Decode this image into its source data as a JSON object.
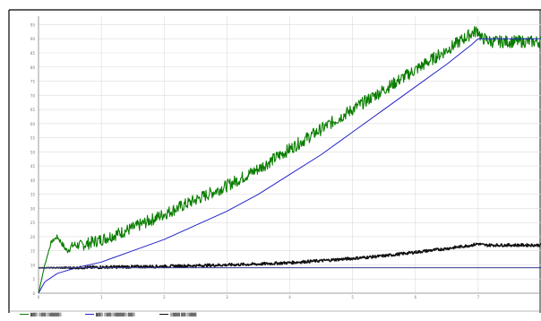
{
  "chart_data": {
    "type": "line",
    "title": "",
    "xlabel": "",
    "ylabel": "",
    "x_ticks": [
      "0",
      "1",
      "2",
      "3",
      "4",
      "5",
      "6",
      "7"
    ],
    "y_ticks": [
      "0",
      "5",
      "10",
      "15",
      "20",
      "25",
      "30",
      "35",
      "40",
      "45",
      "50",
      "55",
      "60",
      "65",
      "70",
      "75",
      "80",
      "85",
      "90",
      "95"
    ],
    "xlim": [
      0,
      8
    ],
    "ylim": [
      0,
      98
    ],
    "grid": true,
    "series": [
      {
        "color": "#0a7d00",
        "noise": 2.2,
        "x": [
          0.0,
          0.1,
          0.2,
          0.3,
          0.45,
          0.55,
          0.7,
          1.0,
          1.5,
          2.0,
          2.5,
          3.0,
          3.5,
          4.0,
          4.5,
          5.0,
          5.5,
          6.0,
          6.5,
          6.9,
          7.0,
          7.05,
          7.1,
          7.2,
          8.0
        ],
        "y": [
          0,
          10,
          18,
          20,
          15,
          17,
          17,
          19,
          23,
          28,
          33,
          38,
          44,
          51,
          58,
          65,
          72,
          79,
          86,
          92,
          93,
          90,
          90,
          89,
          89
        ]
      },
      {
        "color": "#2323c8",
        "noise": 0,
        "x": [
          0.0,
          0.1,
          0.3,
          0.6,
          1.0,
          1.5,
          2.0,
          2.5,
          3.0,
          3.5,
          4.0,
          4.5,
          5.0,
          5.5,
          6.0,
          6.5,
          6.9,
          7.0,
          8.0
        ],
        "y": [
          0,
          4,
          7,
          9,
          11,
          15,
          19,
          24,
          29,
          35,
          42,
          49,
          57,
          65,
          73,
          81,
          88,
          90,
          90
        ]
      },
      {
        "color": "#111111",
        "noise": 0.5,
        "x": [
          0.0,
          0.6,
          1.0,
          2.0,
          3.0,
          3.5,
          4.0,
          4.5,
          5.0,
          5.5,
          6.0,
          6.5,
          6.9,
          7.0,
          7.1,
          8.0
        ],
        "y": [
          9,
          9,
          9.2,
          9.5,
          10,
          10.3,
          10.8,
          11.5,
          12.3,
          13.2,
          14.5,
          15.8,
          17,
          17.5,
          17,
          17
        ]
      },
      {
        "color": "#3a3a8c",
        "noise": 0,
        "x": [
          0.0,
          8.0
        ],
        "y": [
          9,
          9
        ]
      }
    ],
    "legend": [
      "█▓▒ ▒▓▓ ▒▓▓▓▓▒",
      "█▓▒ ▒▓▓ ▒▓▓▓▓▒ ▓▓▒",
      "▒▓▓▓ ▓▓ ▒▓▓▓"
    ]
  }
}
